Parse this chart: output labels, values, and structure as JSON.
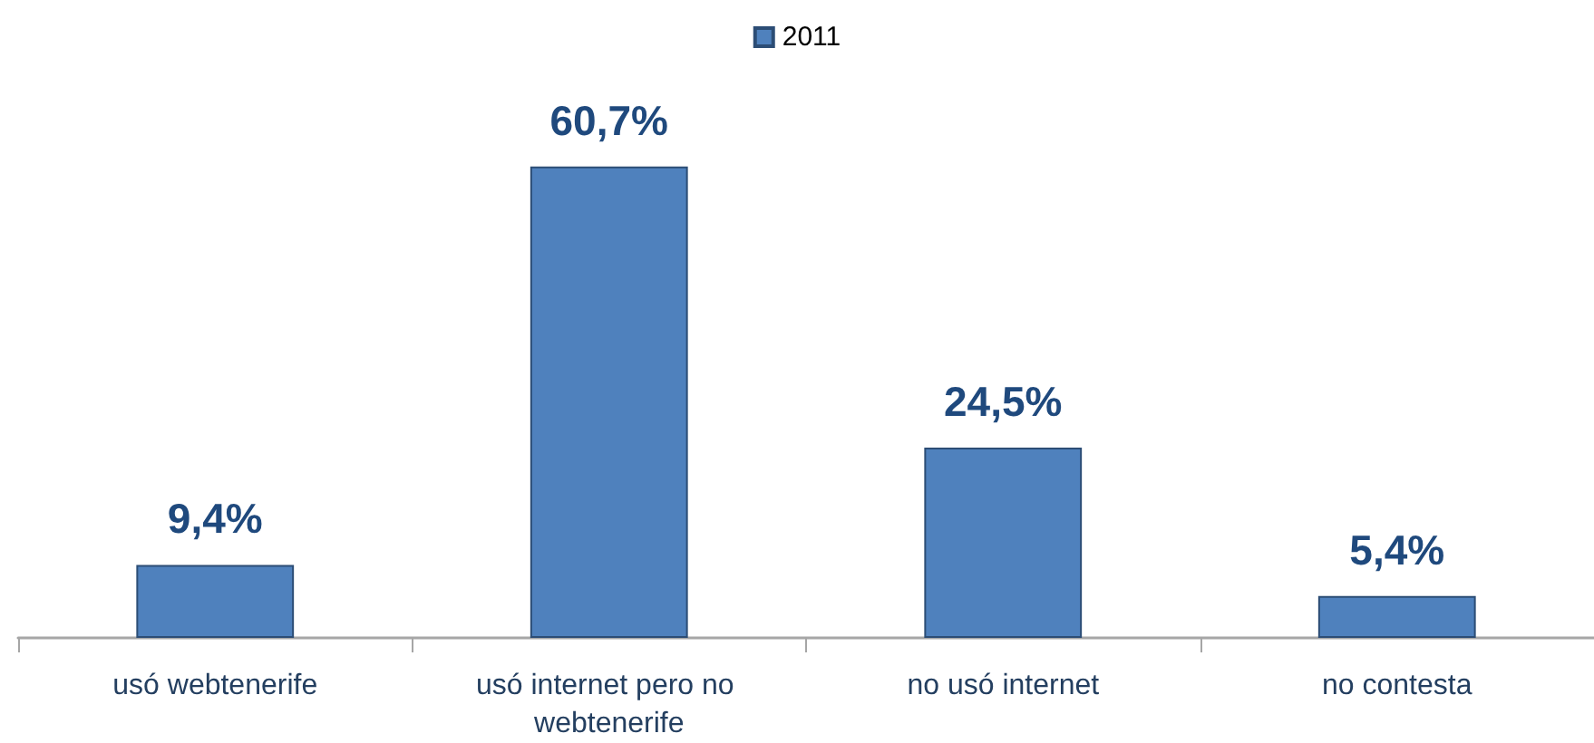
{
  "chart_data": {
    "type": "bar",
    "categories": [
      "usó webtenerife",
      "usó internet pero no webtenerife",
      "no usó internet",
      "no contesta"
    ],
    "series": [
      {
        "name": "2011",
        "color": "#4f81bd",
        "values": [
          9.4,
          60.7,
          24.5,
          5.4
        ],
        "value_labels": [
          "9,4%",
          "60,7%",
          "24,5%",
          "5,4%"
        ]
      }
    ],
    "legend": "top",
    "grid": false,
    "tick_labels": "x"
  }
}
